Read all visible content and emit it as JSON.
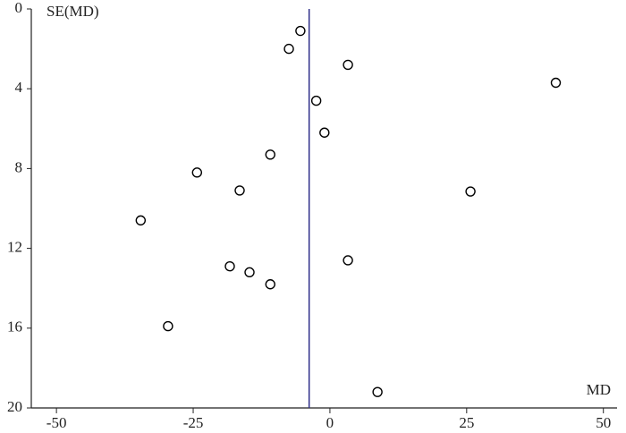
{
  "chart_data": {
    "type": "scatter",
    "y_label": "SE(MD)",
    "x_label": "MD",
    "x": [
      -5.4,
      -7.5,
      3.3,
      41.3,
      -2.5,
      -1.0,
      -10.9,
      -24.3,
      -16.5,
      25.7,
      -34.6,
      3.3,
      -18.3,
      -14.7,
      -10.9,
      -29.6,
      8.7
    ],
    "values": [
      1.1,
      2.0,
      2.8,
      3.7,
      4.6,
      6.2,
      7.3,
      8.2,
      9.1,
      9.15,
      10.6,
      12.6,
      12.9,
      13.2,
      13.8,
      15.9,
      19.2
    ],
    "color": "#000000",
    "reference_line": -3.8,
    "reference_color": "#2e2e8a",
    "xlim": [
      -54.6,
      52.5
    ],
    "xticks": [
      -50,
      -25,
      0,
      25,
      50
    ],
    "ylim": [
      0,
      20
    ],
    "yticks": [
      0,
      4,
      8,
      12,
      16,
      20
    ],
    "y_inverted": true
  }
}
